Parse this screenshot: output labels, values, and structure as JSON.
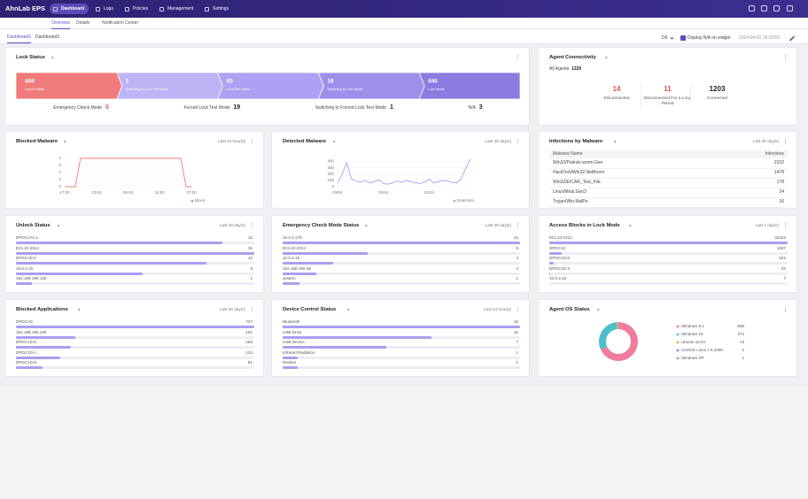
{
  "nav": {
    "brand": "AhnLab EPS",
    "items": [
      "Dashboard",
      "Logs",
      "Policies",
      "Management",
      "Settings"
    ]
  },
  "subnav": [
    "Overview",
    "Details",
    "Notification Center"
  ],
  "tabs": [
    "Dashboard1",
    "Dashboard2"
  ],
  "toolbar": {
    "select": "D6",
    "checkbox": "Display N/A on widget",
    "timestamp": "2024-04-02 16:20:53"
  },
  "widgets": [
    {
      "type": "lock",
      "title": "Lock Status",
      "segments": [
        {
          "value": 466,
          "label": "Unlock Mode",
          "color": "#f07b7b"
        },
        {
          "value": 1,
          "label": "Switching to Lock Test Mode",
          "color": "#bdb4f6"
        },
        {
          "value": 65,
          "label": "Lock Test Mode",
          "color": "#aca1f2"
        },
        {
          "value": 18,
          "label": "Switching to Lock Mode",
          "color": "#9d90ea"
        },
        {
          "value": 646,
          "label": "Lock Mode",
          "color": "#8b7ce0"
        }
      ],
      "stats": [
        {
          "label": "Emergency Check Mode",
          "value": 0,
          "color": "#e2554f"
        },
        {
          "label": "Forced Lock Test Mode",
          "value": 19,
          "color": "#222222"
        },
        {
          "label": "Switching to Forced Lock Test Mode",
          "value": 1,
          "color": "#222222"
        },
        {
          "label": "N/A",
          "value": 3,
          "color": "#222222"
        }
      ]
    },
    {
      "type": "connectivity",
      "title": "Agent Connectivity",
      "all_label": "All Agents",
      "all_value": 1226,
      "stats": [
        {
          "value": 14,
          "label": "Disconnected",
          "color": "#e2554f"
        },
        {
          "value": 11,
          "label": "Disconnected For a Long Period",
          "color": "#e2554f"
        },
        {
          "value": 1203,
          "label": "Connected",
          "color": "#222222"
        }
      ]
    },
    {
      "type": "line",
      "title": "Blocked Malware",
      "period": "Last 24 hour(s)",
      "categories": [
        "17:00",
        null,
        null,
        null,
        null,
        null,
        "23:00",
        null,
        null,
        null,
        null,
        null,
        "05:00",
        null,
        null,
        null,
        null,
        null,
        "11:00",
        null,
        null,
        null,
        null,
        null,
        "17:00"
      ],
      "values": [
        0,
        0,
        0,
        4,
        4,
        4,
        4,
        4,
        4,
        4,
        4,
        4,
        4,
        4,
        4,
        4,
        4,
        4,
        4,
        4,
        4,
        4,
        4,
        0,
        0
      ],
      "ylim": [
        0,
        4
      ],
      "yticks": [
        0,
        1,
        2,
        3,
        4
      ],
      "legend": "Block",
      "color": "#ef7b76"
    },
    {
      "type": "line",
      "title": "Detected Malware",
      "period": "Last 30 day(s)",
      "categories": [
        "03/04",
        null,
        null,
        null,
        null,
        null,
        null,
        null,
        null,
        null,
        "03/14",
        null,
        null,
        null,
        null,
        null,
        null,
        null,
        null,
        null,
        "03/24",
        null,
        null,
        null,
        null,
        null,
        null,
        null,
        null,
        null
      ],
      "values": [
        60,
        200,
        380,
        130,
        90,
        70,
        100,
        60,
        80,
        110,
        50,
        40,
        60,
        90,
        70,
        100,
        80,
        60,
        50,
        70,
        120,
        60,
        80,
        100,
        90,
        70,
        60,
        130,
        300,
        440
      ],
      "ylim": [
        0,
        450
      ],
      "yticks": [
        0,
        100,
        200,
        300,
        400
      ],
      "legend": "Detection",
      "color": "#a99ff0"
    },
    {
      "type": "table",
      "title": "Infections by Malware",
      "period": "Last 30 day(s)",
      "columns": [
        "Malware Name",
        "Infections"
      ],
      "rows": [
        [
          "Win32/Palevio.worm.Gen",
          2102
        ],
        [
          "HackTool/Win32.NetBoom",
          1478
        ],
        [
          "Win32/EICAR_Test_File",
          178
        ],
        [
          "Linux/Mirai.Gen3",
          24
        ],
        [
          "Trojan/Win.MalPe",
          16
        ]
      ]
    },
    {
      "type": "bar-list",
      "title": "Unlock Status",
      "period": "Last 30 day(s)",
      "rows": [
        {
          "label": "DPDC1T1-1",
          "value": 13
        },
        {
          "label": "ECL10-2312",
          "value": 15
        },
        {
          "label": "DPDC1D-1",
          "value": 12
        },
        {
          "label": "10.0.2.15",
          "value": 8
        },
        {
          "label": "192.168.199.125",
          "value": 1
        }
      ]
    },
    {
      "type": "bar-list",
      "title": "Emergency Check Mode Status",
      "period": "Last 30 day(s)",
      "rows": [
        {
          "label": "10.2.0.178",
          "value": 14
        },
        {
          "label": "ECL10-2312",
          "value": 5
        },
        {
          "label": "10.0.2.15",
          "value": 3
        },
        {
          "label": "192.168.199.36",
          "value": 2
        },
        {
          "label": "system",
          "value": 1
        }
      ]
    },
    {
      "type": "bar-list",
      "title": "Access Blocks in Lock Mode",
      "period": "Last 7 day(s)",
      "rows": [
        {
          "label": "ECL10-2312",
          "value": 32422
        },
        {
          "label": "DPDC10",
          "value": 1637
        },
        {
          "label": "DPDC1D-6",
          "value": 621
        },
        {
          "label": "DPDC1D-3",
          "value": 23
        },
        {
          "label": "10.0.2.15",
          "value": 7
        }
      ]
    },
    {
      "type": "bar-list",
      "title": "Blocked Applications",
      "period": "Last 30 day(s)",
      "rows": [
        {
          "label": "DPDC1D",
          "value": 727
        },
        {
          "label": "192.168.185.105",
          "value": 181
        },
        {
          "label": "DPDC1D-6",
          "value": 168
        },
        {
          "label": "DPDC1D-1",
          "value": 134
        },
        {
          "label": "DPDC1D-8",
          "value": 81
        }
      ]
    },
    {
      "type": "bar-list",
      "title": "Device Control Status",
      "period": "Last 24 hour(s)",
      "rows": [
        {
          "label": "Bluetooth",
          "value": 16
        },
        {
          "label": "USB Drive",
          "value": 10
        },
        {
          "label": "USB Device",
          "value": 7
        },
        {
          "label": "Infrared Radiation",
          "value": 1
        },
        {
          "label": "Modem",
          "value": 1
        }
      ]
    },
    {
      "type": "donut",
      "title": "Agent OS Status",
      "slices": [
        {
          "label": "Windows 8.1",
          "value": 836,
          "color": "#f07c9c"
        },
        {
          "label": "Windows 10",
          "value": 373,
          "color": "#4cbfc9"
        },
        {
          "label": "Ubuntu 16.04",
          "value": 13,
          "color": "#f2a65a"
        },
        {
          "label": "CentOS Linux 7.6.2009",
          "value": 2,
          "color": "#5b8def"
        },
        {
          "label": "Windows XP",
          "value": 1,
          "color": "#6cc36c"
        }
      ]
    }
  ]
}
